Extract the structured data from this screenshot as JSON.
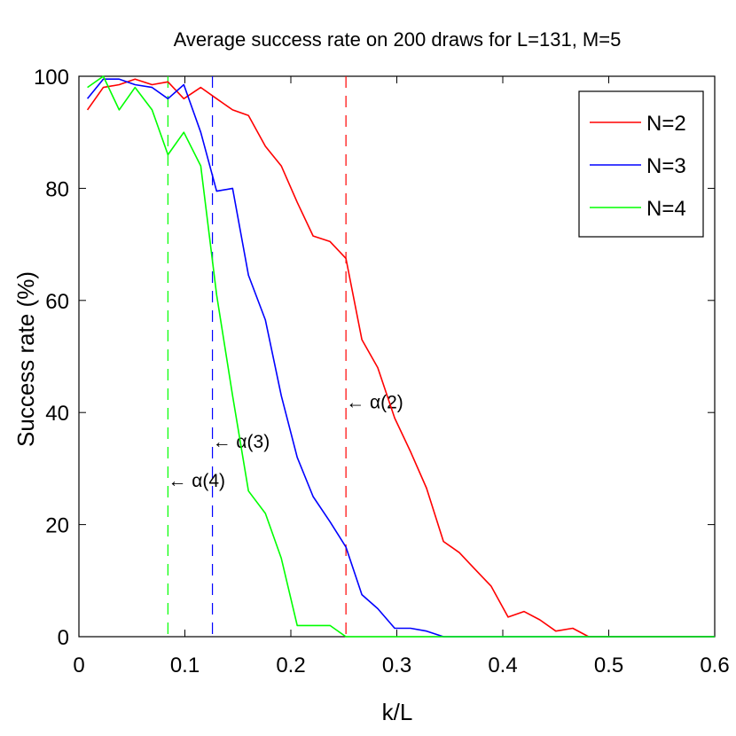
{
  "chart_data": {
    "type": "line",
    "title": "Average success rate on 200 draws for L=131, M=5",
    "xlabel": "k/L",
    "ylabel": "Success rate (%)",
    "xlim": [
      0,
      0.6
    ],
    "ylim": [
      0,
      100
    ],
    "xticks": [
      0,
      0.1,
      0.2,
      0.3,
      0.4,
      0.5,
      0.6
    ],
    "xtick_labels": [
      "0",
      "0.1",
      "0.2",
      "0.3",
      "0.4",
      "0.5",
      "0.6"
    ],
    "yticks": [
      0,
      20,
      40,
      60,
      80,
      100
    ],
    "ytick_labels": [
      "0",
      "20",
      "40",
      "60",
      "80",
      "100"
    ],
    "grid": false,
    "legend_position": "top-right",
    "series": [
      {
        "name": "N=2",
        "color": "#ff0000",
        "x": [
          0.008,
          0.023,
          0.038,
          0.053,
          0.069,
          0.084,
          0.099,
          0.115,
          0.13,
          0.145,
          0.16,
          0.176,
          0.191,
          0.206,
          0.221,
          0.237,
          0.252,
          0.267,
          0.282,
          0.298,
          0.313,
          0.328,
          0.344,
          0.359,
          0.374,
          0.389,
          0.405,
          0.42,
          0.435,
          0.45,
          0.466,
          0.481,
          0.496,
          0.511,
          0.527,
          0.542,
          0.557,
          0.572,
          0.588,
          0.6
        ],
        "y": [
          94,
          98,
          98.5,
          99.5,
          98.5,
          99,
          96,
          98,
          96,
          94,
          93,
          87.5,
          84,
          77.5,
          71.5,
          70.5,
          67.5,
          53,
          48,
          39,
          33,
          26.5,
          17,
          15,
          12,
          9,
          3.5,
          4.5,
          3,
          1,
          1.5,
          0,
          0,
          0,
          0,
          0,
          0,
          0,
          0,
          0
        ]
      },
      {
        "name": "N=3",
        "color": "#0000ff",
        "x": [
          0.008,
          0.023,
          0.038,
          0.053,
          0.069,
          0.084,
          0.099,
          0.115,
          0.13,
          0.145,
          0.16,
          0.176,
          0.191,
          0.206,
          0.221,
          0.237,
          0.252,
          0.267,
          0.282,
          0.298,
          0.313,
          0.328,
          0.344,
          0.359,
          0.374,
          0.389,
          0.405,
          0.42,
          0.435,
          0.45,
          0.466,
          0.481,
          0.496,
          0.511,
          0.527,
          0.542,
          0.557,
          0.572,
          0.588,
          0.6
        ],
        "y": [
          96,
          99.5,
          99.5,
          98.5,
          98,
          96,
          98.5,
          90,
          79.5,
          80,
          64.5,
          56.5,
          43,
          32,
          25,
          20.5,
          16,
          7.5,
          5,
          1.5,
          1.5,
          1,
          0,
          0,
          0,
          0,
          0,
          0,
          0,
          0,
          0,
          0,
          0,
          0,
          0,
          0,
          0,
          0,
          0,
          0
        ]
      },
      {
        "name": "N=4",
        "color": "#00ff00",
        "x": [
          0.008,
          0.023,
          0.038,
          0.053,
          0.069,
          0.084,
          0.099,
          0.115,
          0.13,
          0.145,
          0.16,
          0.176,
          0.191,
          0.206,
          0.221,
          0.237,
          0.252,
          0.267,
          0.282,
          0.298,
          0.313,
          0.328,
          0.344,
          0.359,
          0.374,
          0.389,
          0.405,
          0.42,
          0.435,
          0.45,
          0.466,
          0.481,
          0.496,
          0.511,
          0.527,
          0.542,
          0.557,
          0.572,
          0.588,
          0.6
        ],
        "y": [
          98,
          100,
          94,
          98,
          94,
          86,
          90,
          84,
          61,
          43,
          26,
          22,
          14,
          2,
          2,
          2,
          0,
          0,
          0,
          0,
          0,
          0,
          0,
          0,
          0,
          0,
          0,
          0,
          0,
          0,
          0,
          0,
          0,
          0,
          0,
          0,
          0,
          0,
          0,
          0
        ]
      }
    ],
    "vlines": [
      {
        "x": 0.252,
        "color": "#ff0000",
        "label": "← α(2)",
        "label_y": 42
      },
      {
        "x": 0.126,
        "color": "#0000ff",
        "label": "← α(3)",
        "label_y": 35
      },
      {
        "x": 0.084,
        "color": "#00ff00",
        "label": "← α(4)",
        "label_y": 28
      }
    ]
  }
}
